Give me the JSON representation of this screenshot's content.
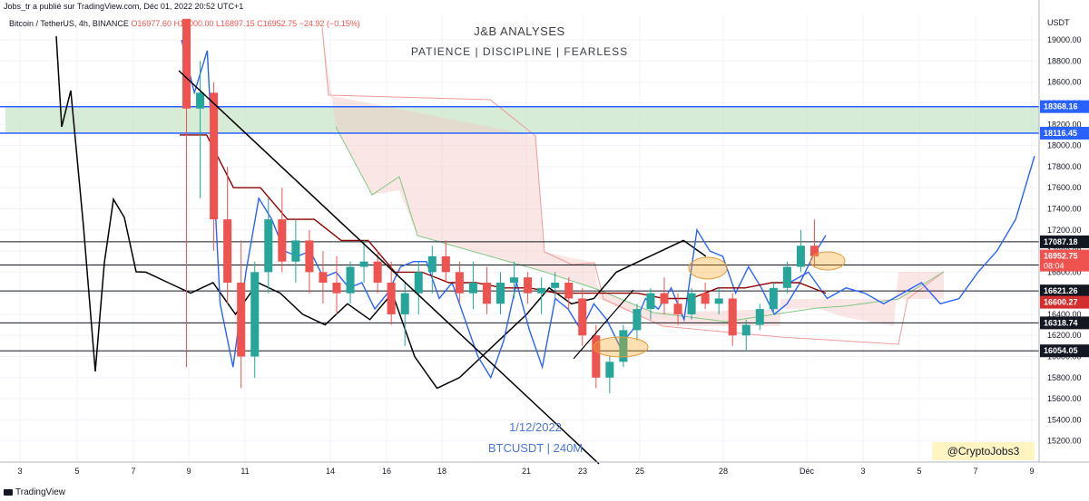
{
  "header": {
    "published_by": "Jobs_tr a publié sur TradingView.com, Déc 01, 2022 20:52 UTC+1",
    "symbol_info": "Bitcoin / TetherUS, 4h, BINANCE",
    "open": "O16977.60",
    "high": "H17000.00",
    "low": "L16897.15",
    "close": "C16952.75",
    "change": "−24.92 (−0.15%)"
  },
  "annotations": {
    "title": "J&B ANALYSES",
    "subtitle": "PATIENCE  |  DISCIPLINE  |  FEARLESS",
    "date": "1/12/2022",
    "symbol_timeframe": "BTCUSDT | 240M",
    "handle": "@CryptoJobs3"
  },
  "footer": {
    "brand": "TradingView"
  },
  "colors": {
    "up": "#26a69a",
    "down": "#ef5350",
    "blue_line": "#2962ff",
    "base_line": "#8b0000",
    "price_line": "#000000",
    "zone_fill": "#c8e6c9"
  },
  "chart_data": {
    "type": "candlestick",
    "y_axis_unit": "USDT",
    "ylim": [
      15000,
      19250
    ],
    "x_labels": [
      "3",
      "5",
      "7",
      "9",
      "11",
      "14",
      "16",
      "18",
      "21",
      "23",
      "25",
      "28",
      "Déc",
      "3",
      "5",
      "7",
      "9"
    ],
    "y_ticks": [
      15200,
      15400,
      15600,
      15800,
      16000,
      16200,
      16400,
      16600,
      16800,
      17000,
      17200,
      17400,
      17600,
      17800,
      18000,
      18200,
      18400,
      18600,
      18800,
      19000
    ],
    "y_tick_labels": [
      "15200.00",
      "15400.00",
      "15600.00",
      "15800.00",
      "16000.00",
      "16200.00",
      "16400.00",
      "16600.00",
      "16800.00",
      "17000.00",
      "17200.00",
      "17400.00",
      "17600.00",
      "17800.00",
      "18000.00",
      "18200.00",
      "18400.00",
      "18600.00",
      "18800.00",
      "19000.00"
    ],
    "resistance_zone": {
      "low": 18116.45,
      "high": 18368.16
    },
    "horizontal_levels": [
      {
        "value": 18368.16,
        "label": "18368.16",
        "color": "#2962ff"
      },
      {
        "value": 18116.45,
        "label": "18116.45",
        "color": "#2962ff"
      },
      {
        "value": 17087.18,
        "label": "17087.18",
        "color": "#131722"
      },
      {
        "value": 16867.18,
        "label": "16867.18",
        "color": "#131722"
      },
      {
        "value": 16621.26,
        "label": "16621.26",
        "color": "#131722"
      },
      {
        "value": 16318.74,
        "label": "16318.74",
        "color": "#131722"
      },
      {
        "value": 16054.05,
        "label": "16054.05",
        "color": "#131722"
      }
    ],
    "current_price": {
      "value": 16952.75,
      "label": "16952.75",
      "countdown": "08:04"
    },
    "red_marker": {
      "value": 16600.27,
      "label": "16600.27"
    },
    "candles": [
      [
        19200,
        19200,
        15900,
        18350
      ],
      [
        18350,
        18800,
        17500,
        18500
      ],
      [
        18500,
        18600,
        17000,
        17300
      ],
      [
        17300,
        17800,
        16500,
        16700
      ],
      [
        16700,
        17100,
        15700,
        16000
      ],
      [
        16000,
        16900,
        15800,
        16800
      ],
      [
        16800,
        17500,
        16600,
        17300
      ],
      [
        17300,
        17600,
        16800,
        16900
      ],
      [
        16900,
        17300,
        16700,
        17100
      ],
      [
        17100,
        17200,
        16600,
        16800
      ],
      [
        16800,
        17000,
        16500,
        16700
      ],
      [
        16700,
        16950,
        16400,
        16600
      ],
      [
        16600,
        16900,
        16500,
        16850
      ],
      [
        16850,
        17100,
        16700,
        16900
      ],
      [
        16900,
        17000,
        16600,
        16700
      ],
      [
        16700,
        16900,
        16300,
        16400
      ],
      [
        16400,
        16700,
        16100,
        16600
      ],
      [
        16600,
        16900,
        16400,
        16800
      ],
      [
        16800,
        17050,
        16600,
        16950
      ],
      [
        16950,
        17100,
        16700,
        16800
      ],
      [
        16800,
        16900,
        16500,
        16600
      ],
      [
        16600,
        16900,
        16450,
        16700
      ],
      [
        16700,
        16850,
        16400,
        16500
      ],
      [
        16500,
        16800,
        16400,
        16700
      ],
      [
        16700,
        16900,
        16550,
        16750
      ],
      [
        16750,
        16800,
        16500,
        16600
      ],
      [
        16600,
        16750,
        16400,
        16650
      ],
      [
        16650,
        16800,
        16550,
        16700
      ],
      [
        16700,
        16750,
        16450,
        16550
      ],
      [
        16550,
        16650,
        16100,
        16200
      ],
      [
        16200,
        16300,
        15700,
        15800
      ],
      [
        15800,
        16000,
        15650,
        15950
      ],
      [
        15950,
        16300,
        15900,
        16250
      ],
      [
        16250,
        16500,
        16150,
        16450
      ],
      [
        16450,
        16650,
        16350,
        16600
      ],
      [
        16600,
        16750,
        16400,
        16500
      ],
      [
        16500,
        16600,
        16300,
        16400
      ],
      [
        16400,
        16650,
        16350,
        16600
      ],
      [
        16600,
        16700,
        16450,
        16500
      ],
      [
        16500,
        16650,
        16400,
        16550
      ],
      [
        16550,
        16600,
        16100,
        16200
      ],
      [
        16200,
        16350,
        16050,
        16300
      ],
      [
        16300,
        16500,
        16250,
        16450
      ],
      [
        16450,
        16700,
        16400,
        16650
      ],
      [
        16650,
        16900,
        16600,
        16850
      ],
      [
        16850,
        17200,
        16800,
        17050
      ],
      [
        17050,
        17300,
        16850,
        16950
      ]
    ],
    "series": [
      {
        "values": [
          19000,
          18500,
          18900,
          16500,
          15900,
          16800,
          17500,
          17300,
          17000,
          16950,
          17000,
          16750,
          16800,
          16650,
          16700,
          16450,
          16600,
          16850,
          16900,
          16900,
          16550,
          16700,
          16350,
          16000,
          15800,
          16150,
          16700,
          16250,
          15900,
          16550,
          16450,
          16250,
          16500,
          16350,
          16100,
          16250,
          16550,
          16450,
          16650,
          16350,
          17200,
          17000,
          16950,
          16600,
          16850,
          16650,
          16400,
          16500,
          16700,
          16950,
          17150
        ]
      },
      {
        "values": [
          18800,
          18400,
          17800,
          17200,
          16800,
          16900,
          16850,
          16800,
          16700,
          16650,
          16600,
          16550,
          16600,
          16500,
          16200,
          16100,
          16300,
          16600,
          16700,
          16800,
          16900,
          16700,
          16800,
          16550,
          16650,
          16600,
          16500,
          16600,
          16700,
          16500,
          16550,
          16800,
          17000,
          17300,
          17900
        ]
      },
      {
        "values": [
          18100,
          18100,
          17600,
          17600,
          17300,
          17300,
          17100,
          17100,
          16800,
          16800,
          16700,
          16700,
          16650,
          16650,
          16600,
          16600,
          16600,
          16600,
          16550,
          16550,
          16650,
          16650,
          16700,
          16700,
          16600
        ]
      }
    ],
    "price_history": [
      18000,
      17700,
      17300,
      17000,
      16800,
      16700,
      16600,
      16700,
      16400,
      16700,
      16600,
      16400,
      16300,
      16500,
      16350,
      16600,
      16000,
      15700,
      15800,
      16000,
      16200,
      16400,
      16650,
      16500,
      16550,
      16800,
      16900,
      17000,
      17100,
      16950,
      16800,
      16500,
      16650,
      16600,
      16800,
      16900,
      16950,
      17050,
      17200
    ]
  }
}
